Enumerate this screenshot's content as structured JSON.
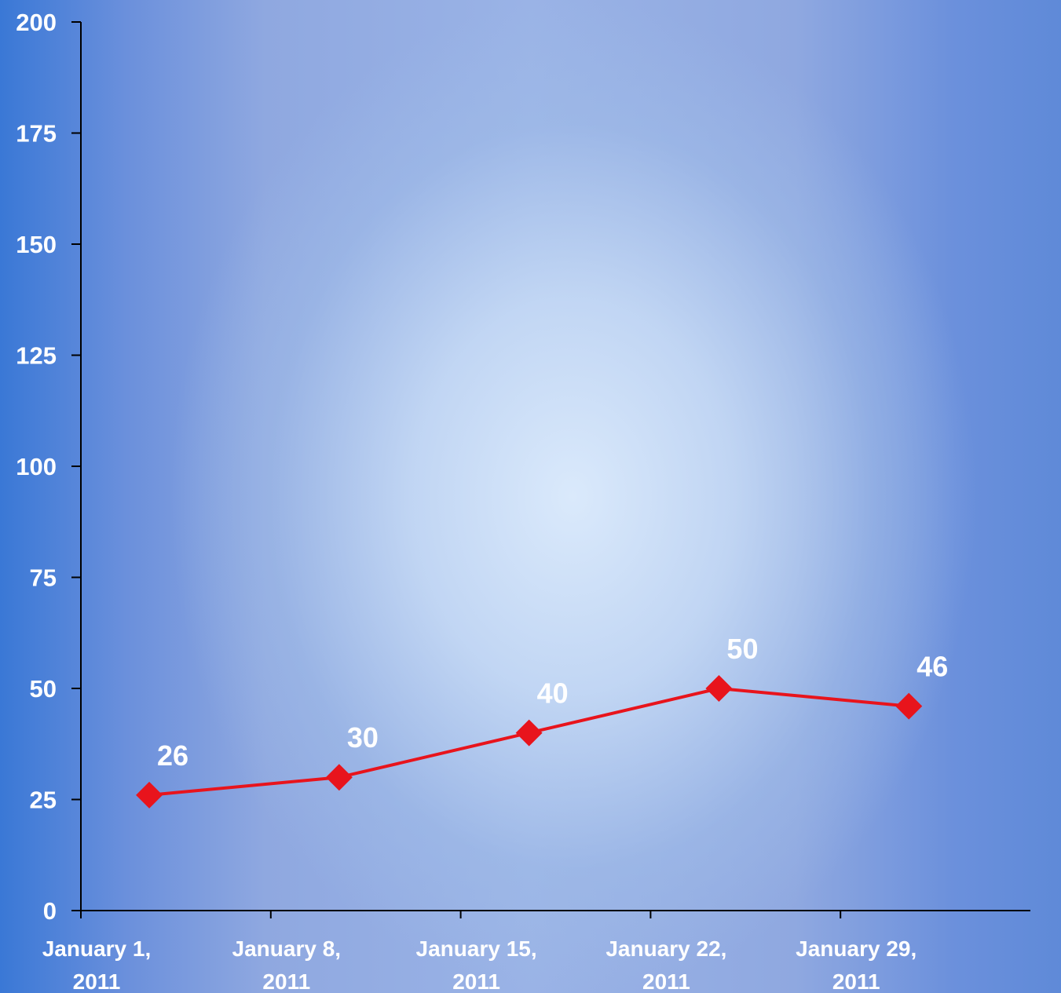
{
  "chart_data": {
    "type": "line",
    "title": "",
    "xlabel": "",
    "ylabel": "",
    "ylim": [
      0,
      200
    ],
    "yticks": [
      0,
      25,
      50,
      75,
      100,
      125,
      150,
      175,
      200
    ],
    "x_tick_labels": [
      [
        "January 1,",
        "2011"
      ],
      [
        "January 8,",
        "2011"
      ],
      [
        "January 15,",
        "2011"
      ],
      [
        "January 22,",
        "2011"
      ],
      [
        "January 29,",
        "2011"
      ]
    ],
    "x": [
      "2011-01-01",
      "2011-01-08",
      "2011-01-15",
      "2011-01-22",
      "2011-01-29"
    ],
    "series": [
      {
        "values": [
          26,
          30,
          40,
          50,
          46
        ],
        "data_labels": [
          "26",
          "30",
          "40",
          "50",
          "46"
        ],
        "color": "#e8141c",
        "marker": "diamond"
      }
    ],
    "grid": false,
    "legend": "none",
    "axis_color": "#000000",
    "label_color": "#ffffff"
  }
}
